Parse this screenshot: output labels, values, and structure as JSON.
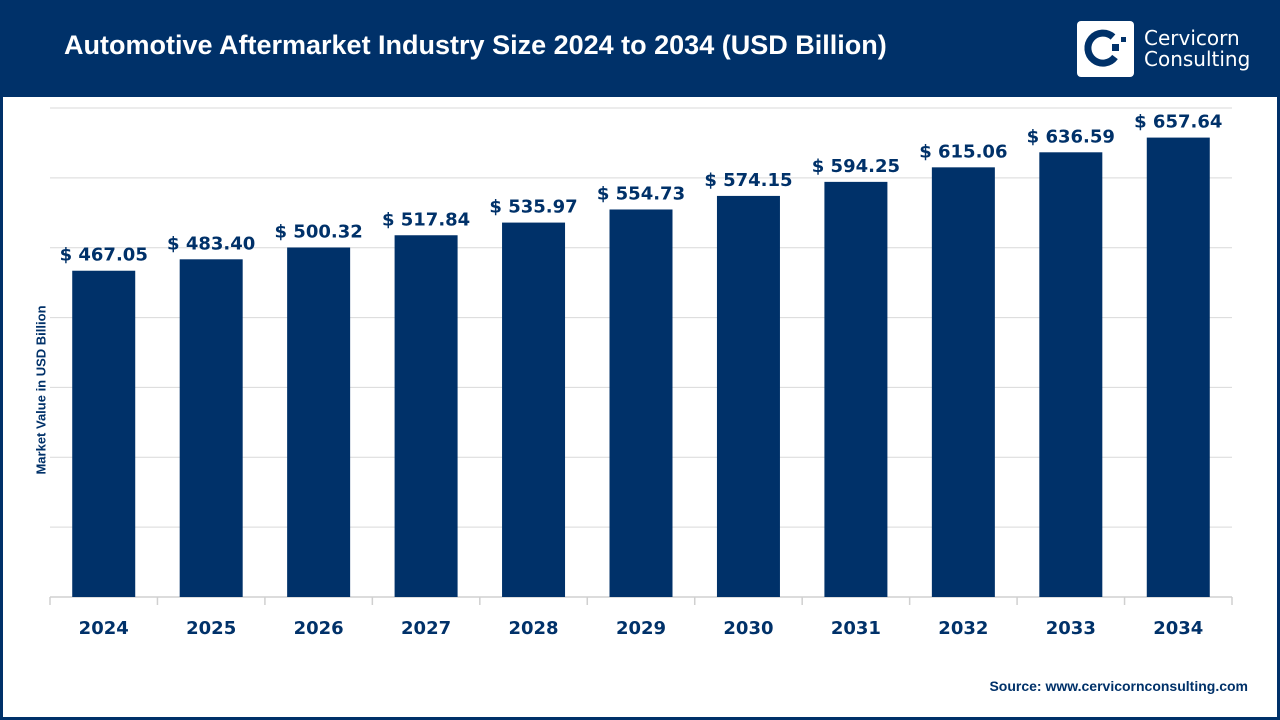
{
  "header": {
    "title": "Automotive Aftermarket Industry Size 2024 to 2034 (USD Billion)",
    "logo_text_line1": "Cervicorn",
    "logo_text_line2": "Consulting"
  },
  "footer": {
    "source": "Source: www.cervicornconsulting.com"
  },
  "colors": {
    "brand": "#003169",
    "bar": "#003169",
    "grid": "#d9d9d9"
  },
  "chart_data": {
    "type": "bar",
    "title": "Automotive Aftermarket Industry Size 2024 to 2034 (USD Billion)",
    "xlabel": "",
    "ylabel": "Market Value in USD Billion",
    "ylim": [
      0,
      700
    ],
    "grid": true,
    "categories": [
      "2024",
      "2025",
      "2026",
      "2027",
      "2028",
      "2029",
      "2030",
      "2031",
      "2032",
      "2033",
      "2034"
    ],
    "values": [
      467.05,
      483.4,
      500.32,
      517.84,
      535.97,
      554.73,
      574.15,
      594.25,
      615.06,
      636.59,
      657.64
    ],
    "data_labels": [
      "$ 467.05",
      "$ 483.40",
      "$ 500.32",
      "$ 517.84",
      "$ 535.97",
      "$ 554.73",
      "$ 574.15",
      "$ 594.25",
      "$ 615.06",
      "$ 636.59",
      "$ 657.64"
    ]
  }
}
